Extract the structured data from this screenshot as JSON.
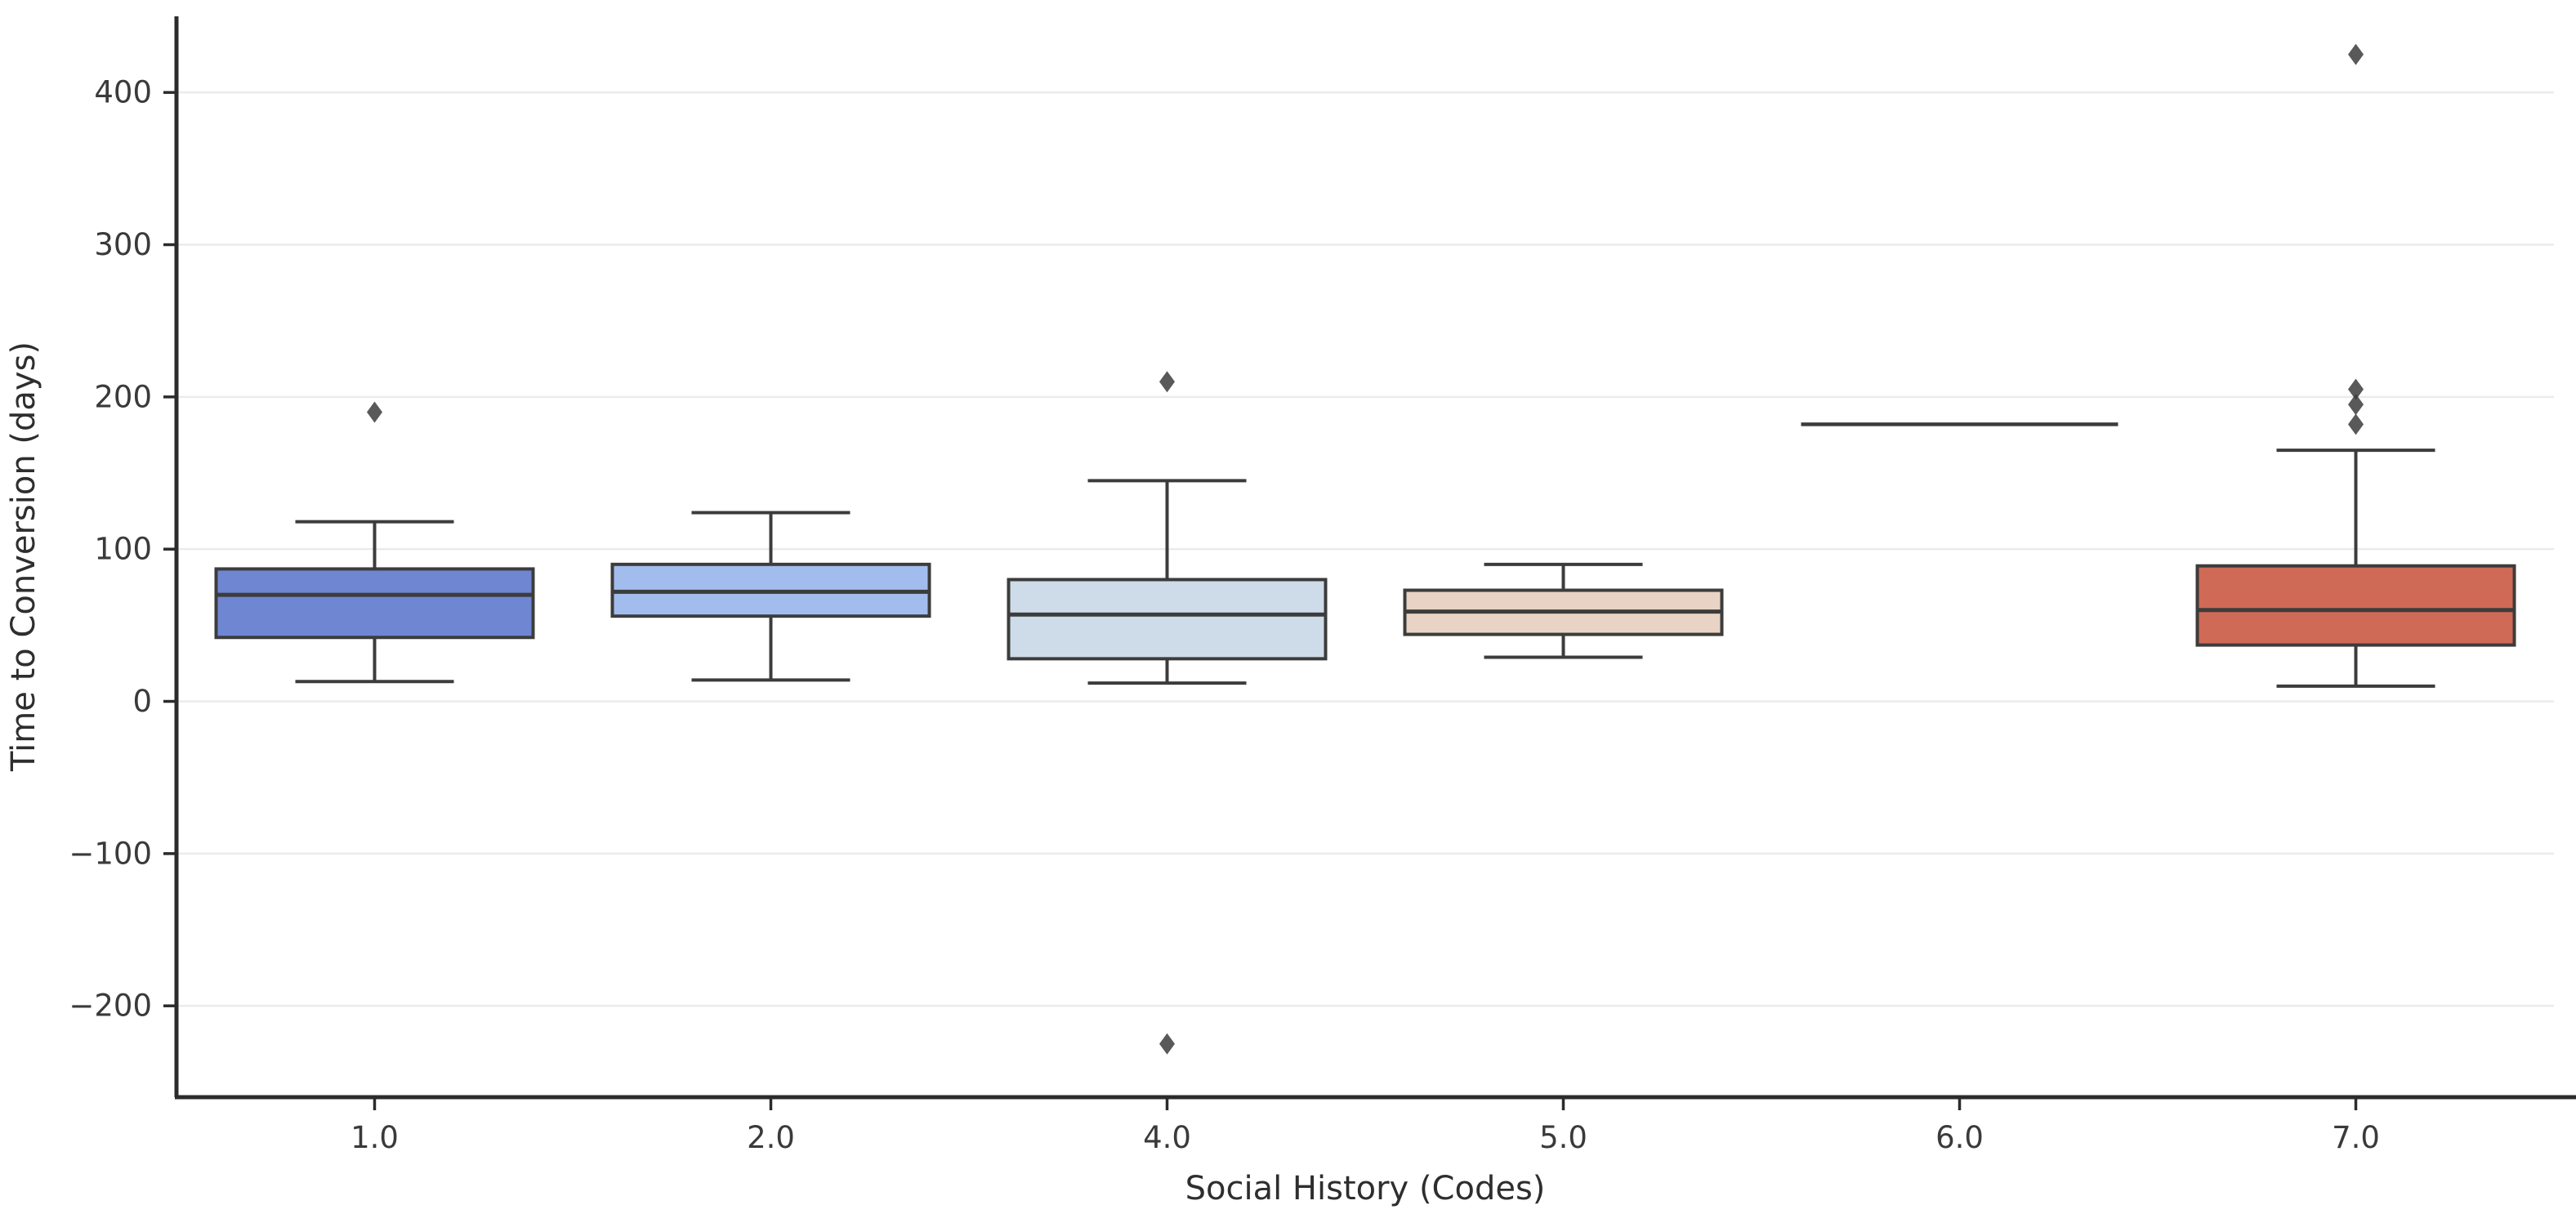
{
  "figure": {
    "background": "#ffffff"
  },
  "chart_data": {
    "type": "box",
    "title": "",
    "xlabel": "Social History (Codes)",
    "ylabel": "Time to Conversion (days)",
    "categories": [
      "1.0",
      "2.0",
      "4.0",
      "5.0",
      "6.0",
      "7.0"
    ],
    "ylim": [
      -260,
      450
    ],
    "yticks": [
      -200,
      -100,
      0,
      100,
      200,
      300,
      400
    ],
    "grid": "horizontal",
    "legend": "none",
    "box_width_fraction": 0.8,
    "boxes": [
      {
        "category": "1.0",
        "color": "#6f86d3",
        "whisker_low": 13,
        "q1": 42,
        "median": 70,
        "q3": 87,
        "whisker_high": 118,
        "outliers": [
          190
        ]
      },
      {
        "category": "2.0",
        "color": "#a2bcee",
        "whisker_low": 14,
        "q1": 56,
        "median": 72,
        "q3": 90,
        "whisker_high": 124,
        "outliers": []
      },
      {
        "category": "4.0",
        "color": "#cedbe8",
        "whisker_low": 12,
        "q1": 28,
        "median": 57,
        "q3": 80,
        "whisker_high": 145,
        "outliers": [
          210,
          -225
        ]
      },
      {
        "category": "5.0",
        "color": "#e9d3c4",
        "whisker_low": 29,
        "q1": 44,
        "median": 59,
        "q3": 73,
        "whisker_high": 90,
        "outliers": []
      },
      {
        "category": "6.0",
        "color": "#f0ab8c",
        "whisker_low": 182,
        "q1": 182,
        "median": 182,
        "q3": 182,
        "whisker_high": 182,
        "outliers": []
      },
      {
        "category": "7.0",
        "color": "#cf6a56",
        "whisker_low": 10,
        "q1": 37,
        "median": 60,
        "q3": 89,
        "whisker_high": 165,
        "outliers": [
          425,
          205,
          195,
          182
        ]
      }
    ],
    "colors": {
      "box_edge": "#3c3c3c",
      "whisker": "#3c3c3c",
      "median_line": "#3c3c3c",
      "outlier_marker": "#3c3c3c",
      "gridline": "#ebebeb",
      "spine": "#2b2b2b",
      "tick_label": "#3a3a3a"
    }
  }
}
